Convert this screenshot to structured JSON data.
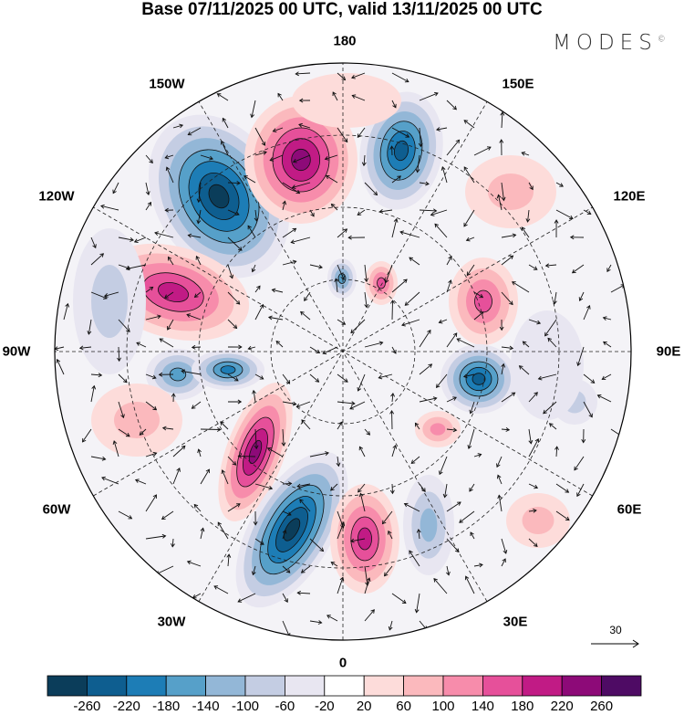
{
  "title": "Base 07/11/2025 00 UTC, valid 13/11/2025 00 UTC",
  "logo": "MODES",
  "logo_mark": "©",
  "longitude_labels": [
    "180",
    "150E",
    "120E",
    "90E",
    "60E",
    "30E",
    "0",
    "30W",
    "60W",
    "90W",
    "120W",
    "150W"
  ],
  "vector_scale": {
    "label": "30"
  },
  "colorbar": {
    "ticks": [
      "-260",
      "-220",
      "-180",
      "-140",
      "-100",
      "-60",
      "-20",
      "20",
      "60",
      "100",
      "140",
      "180",
      "220",
      "260"
    ],
    "colors": [
      "#0b3d5a",
      "#0e5e90",
      "#1d7db6",
      "#56a0c9",
      "#93b7d7",
      "#c4cde3",
      "#e8e6f1",
      "#ffffff",
      "#fddcda",
      "#fbb9bd",
      "#f78cab",
      "#e6509a",
      "#c11b85",
      "#8d0a78",
      "#4e0b64"
    ]
  }
}
